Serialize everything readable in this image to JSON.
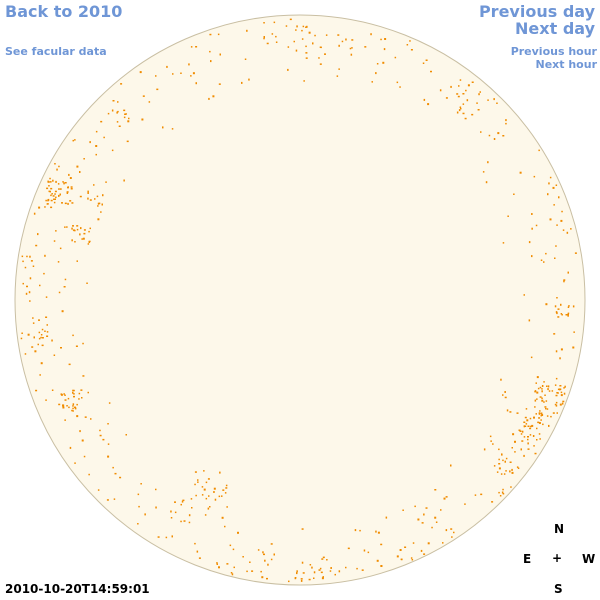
{
  "nav": {
    "back_label": "Back to 2010",
    "facular_label": "See facular data",
    "previous_day_label": "Previous day",
    "next_day_label": "Next day",
    "previous_hour_label": "Previous hour",
    "next_hour_label": "Next hour"
  },
  "compass": {
    "north": "N",
    "east": "E",
    "center": "+",
    "west": "W",
    "south": "S"
  },
  "timestamp": "2010-10-20T14:59:01",
  "colors": {
    "disk_fill": "#fdf8ea",
    "disk_stroke": "#c9bfa3",
    "facula": "#f08c00",
    "link": "#6f96d6"
  }
}
